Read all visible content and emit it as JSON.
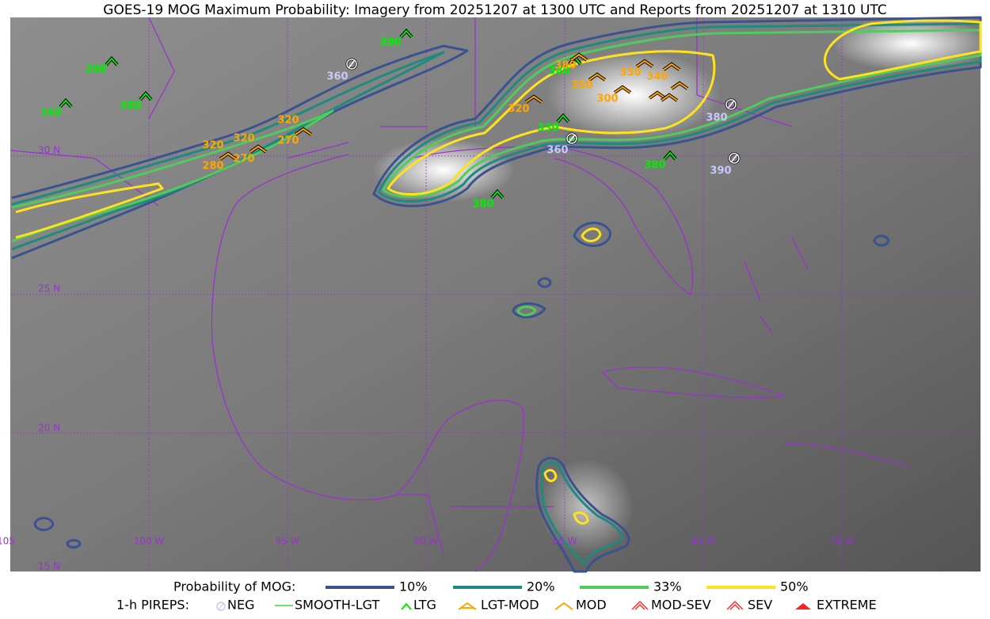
{
  "title": "GOES-19 MOG Maximum Probability: Imagery from 20251207 at 1300 UTC and Reports from 20251207 at 1310 UTC",
  "latitude_labels": [
    "30 N",
    "25 N",
    "20 N",
    "15 N"
  ],
  "longitude_labels": [
    "105",
    "100 W",
    "95 W",
    "90 W",
    "85 W",
    "80 W",
    "75 W"
  ],
  "report_labels": {
    "ltg": [
      "390",
      "200",
      "380",
      "390",
      "380",
      "330",
      "380",
      "380"
    ],
    "mod": [
      "380",
      "350",
      "350",
      "340",
      "300",
      "320",
      "320",
      "320",
      "320",
      "270",
      "270",
      "280"
    ],
    "neg": [
      "360",
      "360",
      "380",
      "390"
    ]
  },
  "legend": {
    "probability_title": "Probability of MOG:",
    "probability_levels": [
      "10%",
      "20%",
      "33%",
      "50%"
    ],
    "pireps_title": "1-h PIREPS:",
    "pireps": [
      "NEG",
      "SMOOTH-LGT",
      "LTG",
      "LGT-MOD",
      "MOD",
      "MOD-SEV",
      "SEV",
      "EXTREME"
    ]
  }
}
